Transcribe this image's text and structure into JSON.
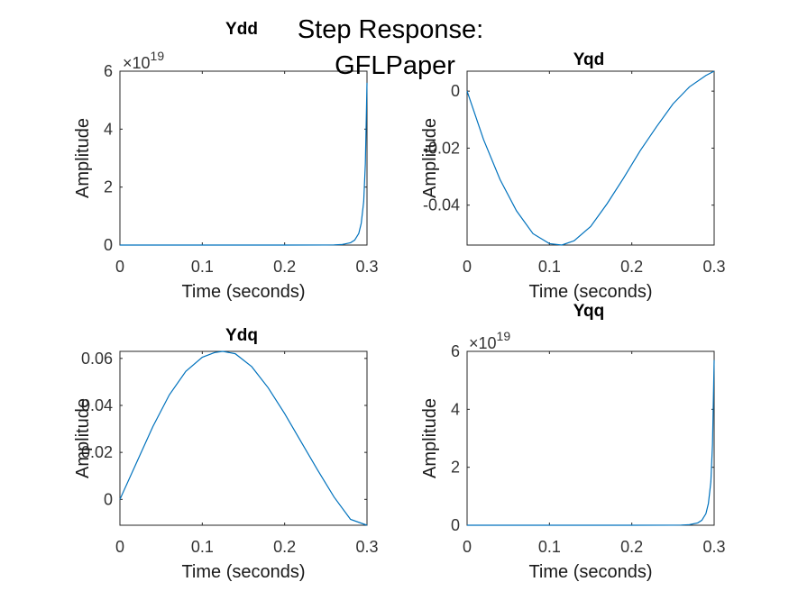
{
  "figure": {
    "suptitle_lines": [
      "Step Response:",
      "GFLPaper"
    ]
  },
  "line_color": "#0072BD",
  "chart_data": [
    {
      "type": "line",
      "title": "Ydd",
      "xlabel": "Time (seconds)",
      "ylabel": "Amplitude",
      "xlim": [
        0,
        0.3
      ],
      "ylim": [
        0,
        6
      ],
      "y_multiplier": "×10",
      "y_exponent": "19",
      "xticks": [
        "0",
        "0.1",
        "0.2",
        "0.3"
      ],
      "yticks": [
        "0",
        "2",
        "4",
        "6"
      ],
      "series": [
        {
          "x": [
            0,
            0.05,
            0.1,
            0.15,
            0.2,
            0.25,
            0.26,
            0.27,
            0.28,
            0.285,
            0.29,
            0.293,
            0.296,
            0.298,
            0.3
          ],
          "y": [
            0,
            0,
            0,
            0,
            0,
            0.002,
            0.006,
            0.02,
            0.08,
            0.17,
            0.4,
            0.75,
            1.5,
            2.8,
            5.6
          ]
        }
      ]
    },
    {
      "type": "line",
      "title": "Yqd",
      "xlabel": "Time (seconds)",
      "ylabel": "Amplitude",
      "xlim": [
        0,
        0.3
      ],
      "ylim": [
        -0.054,
        0.007
      ],
      "y_multiplier": "",
      "y_exponent": "",
      "xticks": [
        "0",
        "0.1",
        "0.2",
        "0.3"
      ],
      "yticks": [
        "-0.04",
        "-0.02",
        "0"
      ],
      "series": [
        {
          "x": [
            0,
            0.02,
            0.04,
            0.06,
            0.08,
            0.1,
            0.115,
            0.13,
            0.15,
            0.17,
            0.19,
            0.21,
            0.23,
            0.25,
            0.27,
            0.29,
            0.3
          ],
          "y": [
            0,
            -0.017,
            -0.031,
            -0.042,
            -0.05,
            -0.0535,
            -0.054,
            -0.0525,
            -0.0475,
            -0.0395,
            -0.0305,
            -0.021,
            -0.0125,
            -0.0045,
            0.0015,
            0.0055,
            0.007
          ]
        }
      ]
    },
    {
      "type": "line",
      "title": "Ydq",
      "xlabel": "Time (seconds)",
      "ylabel": "Amplitude",
      "xlim": [
        0,
        0.3
      ],
      "ylim": [
        -0.011,
        0.063
      ],
      "y_multiplier": "",
      "y_exponent": "",
      "xticks": [
        "0",
        "0.1",
        "0.2",
        "0.3"
      ],
      "yticks": [
        "0",
        "0.02",
        "0.04",
        "0.06"
      ],
      "series": [
        {
          "x": [
            0,
            0.02,
            0.04,
            0.06,
            0.08,
            0.1,
            0.115,
            0.125,
            0.14,
            0.16,
            0.18,
            0.2,
            0.22,
            0.24,
            0.26,
            0.28,
            0.3
          ],
          "y": [
            0,
            0.0155,
            0.031,
            0.0445,
            0.0545,
            0.0605,
            0.0625,
            0.063,
            0.062,
            0.0565,
            0.0475,
            0.0365,
            0.0245,
            0.0125,
            0.001,
            -0.0085,
            -0.011
          ]
        }
      ]
    },
    {
      "type": "line",
      "title": "Yqq",
      "xlabel": "Time (seconds)",
      "ylabel": "Amplitude",
      "xlim": [
        0,
        0.3
      ],
      "ylim": [
        0,
        6
      ],
      "y_multiplier": "×10",
      "y_exponent": "19",
      "xticks": [
        "0",
        "0.1",
        "0.2",
        "0.3"
      ],
      "yticks": [
        "0",
        "2",
        "4",
        "6"
      ],
      "series": [
        {
          "x": [
            0,
            0.05,
            0.1,
            0.15,
            0.2,
            0.25,
            0.26,
            0.27,
            0.28,
            0.285,
            0.29,
            0.293,
            0.296,
            0.298,
            0.3
          ],
          "y": [
            0,
            0,
            0,
            0,
            0,
            0.002,
            0.006,
            0.02,
            0.08,
            0.17,
            0.4,
            0.75,
            1.5,
            2.8,
            5.7
          ]
        }
      ]
    }
  ]
}
